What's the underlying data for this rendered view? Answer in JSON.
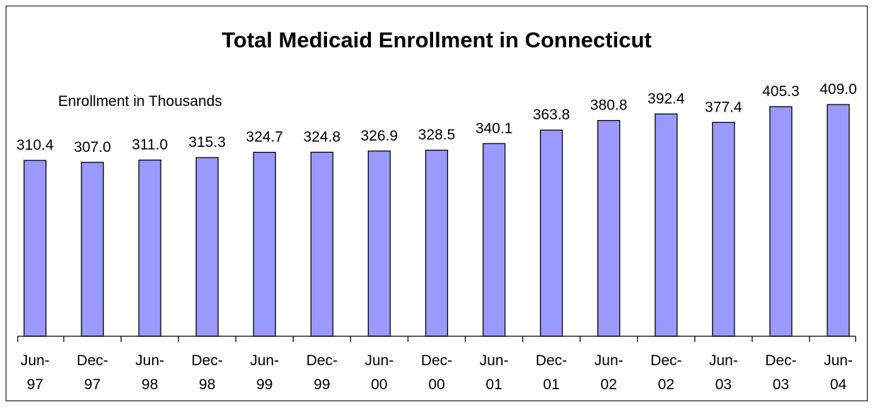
{
  "chart_data": {
    "type": "bar",
    "title": "Total Medicaid Enrollment in Connecticut",
    "unit_label": "Enrollment in Thousands",
    "categories": [
      [
        "Jun-",
        "97"
      ],
      [
        "Dec-",
        "97"
      ],
      [
        "Jun-",
        "98"
      ],
      [
        "Dec-",
        "98"
      ],
      [
        "Jun-",
        "99"
      ],
      [
        "Dec-",
        "99"
      ],
      [
        "Jun-",
        "00"
      ],
      [
        "Dec-",
        "00"
      ],
      [
        "Jun-",
        "01"
      ],
      [
        "Dec-",
        "01"
      ],
      [
        "Jun-",
        "02"
      ],
      [
        "Dec-",
        "02"
      ],
      [
        "Jun-",
        "03"
      ],
      [
        "Dec-",
        "03"
      ],
      [
        "Jun-",
        "04"
      ]
    ],
    "values": [
      310.4,
      307.0,
      311.0,
      315.3,
      324.7,
      324.8,
      326.9,
      328.5,
      340.1,
      363.8,
      380.8,
      392.4,
      377.4,
      405.3,
      409.0
    ],
    "data_labels": [
      "310.4",
      "307.0",
      "311.0",
      "315.3",
      "324.7",
      "324.8",
      "326.9",
      "328.5",
      "340.1",
      "363.8",
      "380.8",
      "392.4",
      "377.4",
      "405.3",
      "409.0"
    ],
    "ylim": [
      0,
      409.0
    ],
    "bar_color": "#9999ff",
    "grid": false,
    "legend": "none",
    "y_axis_visible": false
  }
}
